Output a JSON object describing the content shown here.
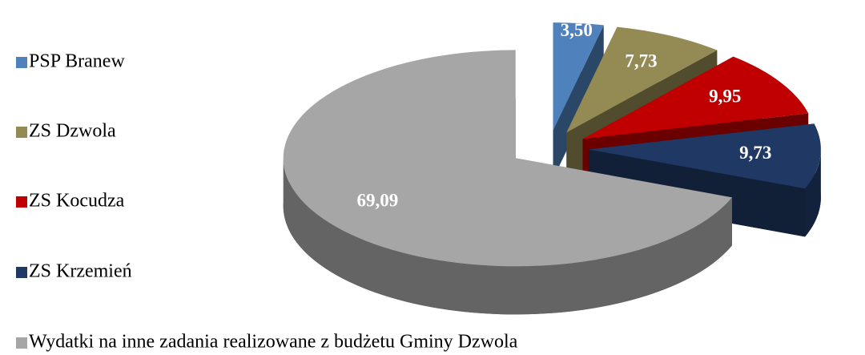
{
  "chart_data": {
    "type": "pie3d",
    "categories": [
      "PSP Branew",
      "ZS Dzwola",
      "ZS Kocudza",
      "ZS Krzemień",
      "Wydatki na inne zadania realizowane z budżetu Gminy Dzwola"
    ],
    "values": [
      3.5,
      7.73,
      9.95,
      9.73,
      69.09
    ],
    "value_labels": [
      "3,50",
      "7,73",
      "9,95",
      "9,73",
      "69,09"
    ],
    "colors": [
      "#4f81bd",
      "#948a54",
      "#c00000",
      "#1f3864",
      "#a6a6a6"
    ],
    "legend": "left"
  }
}
